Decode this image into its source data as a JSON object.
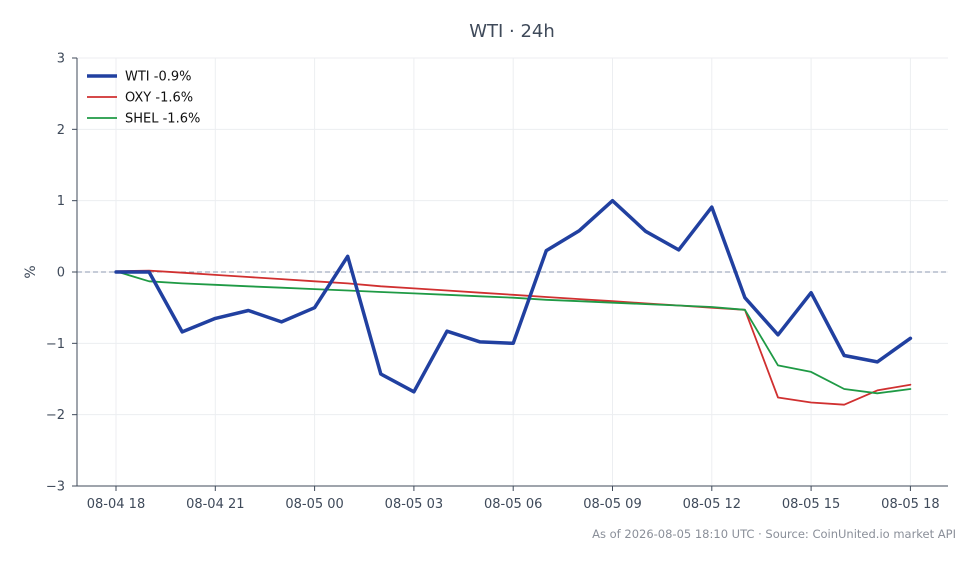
{
  "chart_data": {
    "type": "line",
    "title": "WTI · 24h",
    "xlabel": "",
    "ylabel": "%",
    "ylim": [
      -3,
      3
    ],
    "yticks": [
      3,
      2,
      1,
      0,
      -1,
      -2,
      -3
    ],
    "ytick_labels": [
      "3",
      "2",
      "1",
      "0",
      "−1",
      "−2",
      "−3"
    ],
    "x_categories": [
      "08-04 18",
      "08-04 19",
      "08-04 20",
      "08-04 21",
      "08-04 22",
      "08-04 23",
      "08-05 00",
      "08-05 01",
      "08-05 02",
      "08-05 03",
      "08-05 04",
      "08-05 05",
      "08-05 06",
      "08-05 07",
      "08-05 08",
      "08-05 09",
      "08-05 10",
      "08-05 11",
      "08-05 12",
      "08-05 13",
      "08-05 14",
      "08-05 15",
      "08-05 16",
      "08-05 17",
      "08-05 18"
    ],
    "xtick_labels": [
      "08-04 18",
      "08-04 21",
      "08-05 00",
      "08-05 03",
      "08-05 06",
      "08-05 09",
      "08-05 12",
      "08-05 15",
      "08-05 18"
    ],
    "grid": true,
    "zero_line": true,
    "legend_position": "top-left",
    "series": [
      {
        "name": "WTI -0.9%",
        "color": "#2140a0",
        "values": [
          0.0,
          0.0,
          -0.84,
          -0.65,
          -0.54,
          -0.7,
          -0.5,
          0.22,
          -1.43,
          -1.68,
          -0.83,
          -0.98,
          -1.0,
          0.3,
          0.58,
          1.0,
          0.57,
          0.31,
          0.91,
          -0.36,
          -0.88,
          -0.29,
          -1.17,
          -1.26,
          -0.93
        ]
      },
      {
        "name": "OXY -1.6%",
        "color": "#d03030",
        "values": [
          0.01,
          0.02,
          -0.01,
          -0.04,
          -0.07,
          -0.1,
          -0.13,
          -0.16,
          -0.2,
          -0.23,
          -0.26,
          -0.29,
          -0.32,
          -0.35,
          -0.38,
          -0.41,
          -0.44,
          -0.47,
          -0.5,
          -0.53,
          -1.76,
          -1.83,
          -1.86,
          -1.66,
          -1.58
        ]
      },
      {
        "name": "SHEL -1.6%",
        "color": "#1f9a45",
        "values": [
          0.01,
          -0.13,
          -0.16,
          -0.18,
          -0.2,
          -0.22,
          -0.24,
          -0.26,
          -0.28,
          -0.3,
          -0.32,
          -0.34,
          -0.36,
          -0.39,
          -0.41,
          -0.43,
          -0.45,
          -0.47,
          -0.49,
          -0.53,
          -1.31,
          -1.4,
          -1.64,
          -1.7,
          -1.64
        ]
      }
    ]
  },
  "footer": "As of 2026-08-05 18:10 UTC · Source: CoinUnited.io market API"
}
